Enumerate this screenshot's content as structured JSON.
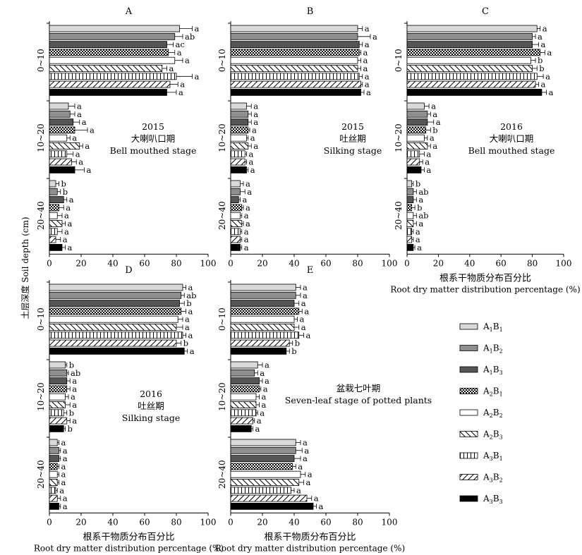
{
  "ylabel": "土层深度 Soil depth (cm)",
  "legend": [
    {
      "label": "A1B1",
      "main": "A",
      "sub1": "1",
      "mid": "B",
      "sub2": "1",
      "pattern": "light"
    },
    {
      "label": "A1B2",
      "main": "A",
      "sub1": "1",
      "mid": "B",
      "sub2": "2",
      "pattern": "gray"
    },
    {
      "label": "A1B3",
      "main": "A",
      "sub1": "1",
      "mid": "B",
      "sub2": "3",
      "pattern": "dark"
    },
    {
      "label": "A2B1",
      "main": "A",
      "sub1": "2",
      "mid": "B",
      "sub2": "1",
      "pattern": "checker"
    },
    {
      "label": "A2B2",
      "main": "A",
      "sub1": "2",
      "mid": "B",
      "sub2": "2",
      "pattern": "white"
    },
    {
      "label": "A2B3",
      "main": "A",
      "sub1": "2",
      "mid": "B",
      "sub2": "3",
      "pattern": "bslash"
    },
    {
      "label": "A3B1",
      "main": "A",
      "sub1": "3",
      "mid": "B",
      "sub2": "1",
      "pattern": "grid"
    },
    {
      "label": "A3B2",
      "main": "A",
      "sub1": "3",
      "mid": "B",
      "sub2": "2",
      "pattern": "fslash"
    },
    {
      "label": "A3B3",
      "main": "A",
      "sub1": "3",
      "mid": "B",
      "sub2": "3",
      "pattern": "black"
    }
  ],
  "chart_data": [
    {
      "type": "bar",
      "panel": "A",
      "annotation": [
        "2015",
        "大喇叭口期",
        "Bell mouthed stage"
      ],
      "xlabel_cn": "",
      "xlabel_en": "",
      "xlim": [
        0,
        100
      ],
      "xticks": [
        "0",
        "20",
        "40",
        "60",
        "80",
        "100"
      ],
      "depths": [
        "0~10",
        "10~20",
        "20~40"
      ],
      "values": [
        [
          82,
          79,
          74,
          75,
          79,
          71,
          80,
          76,
          74
        ],
        [
          12,
          13,
          15,
          16,
          11,
          19,
          11,
          14,
          16
        ],
        [
          4,
          5,
          9,
          6,
          5,
          8,
          5,
          4,
          8
        ]
      ],
      "errors": [
        [
          8,
          5,
          4,
          4,
          5,
          3,
          10,
          5,
          6
        ],
        [
          4,
          3,
          4,
          8,
          2,
          2,
          4,
          3,
          6
        ],
        [
          2,
          2,
          2,
          3,
          3,
          2,
          3,
          3,
          2
        ]
      ],
      "sig": [
        [
          "a",
          "ab",
          "ac",
          "a",
          "a",
          "a",
          "a",
          "a",
          "a"
        ],
        [
          "a",
          "a",
          "a",
          "a",
          "a",
          "a",
          "a",
          "a",
          "a"
        ],
        [
          "b",
          "b",
          "a",
          "a",
          "a",
          "a",
          "a",
          "a",
          "a"
        ]
      ]
    },
    {
      "type": "bar",
      "panel": "B",
      "annotation": [
        "2015",
        "吐丝期",
        "Silking stage"
      ],
      "xlabel_cn": "",
      "xlabel_en": "",
      "xlim": [
        0,
        100
      ],
      "xticks": [
        "0",
        "20",
        "40",
        "60",
        "80",
        "100"
      ],
      "depths": [
        "0~10",
        "10~20",
        "20~40"
      ],
      "values": [
        [
          80,
          80,
          81,
          81,
          80,
          80,
          81,
          82,
          82
        ],
        [
          10,
          11,
          11,
          11,
          10,
          11,
          9,
          9,
          10
        ],
        [
          6,
          6,
          5,
          7,
          6,
          7,
          6,
          6,
          6
        ]
      ],
      "errors": [
        [
          3,
          8,
          2,
          1,
          2,
          2,
          2,
          1,
          2
        ],
        [
          3,
          2,
          2,
          1,
          1,
          2,
          1,
          1,
          1
        ],
        [
          2,
          3,
          1,
          1,
          1,
          1,
          1,
          1,
          1
        ]
      ],
      "sig": [
        [
          "a",
          "a",
          "a",
          "a",
          "a",
          "a",
          "a",
          "a",
          "a"
        ],
        [
          "a",
          "a",
          "a",
          "a",
          "a",
          "a",
          "a",
          "a",
          "a"
        ],
        [
          "a",
          "a",
          "a",
          "a",
          "a",
          "a",
          "a",
          "a",
          "a"
        ]
      ]
    },
    {
      "type": "bar",
      "panel": "C",
      "annotation": [
        "2016",
        "大喇叭口期",
        "Bell mouthed stage"
      ],
      "xlabel_cn": "根系干物质分布百分比",
      "xlabel_en": "Root dry matter distribution percentage (%)",
      "xlim": [
        0,
        100
      ],
      "xticks": [
        "0",
        "20",
        "40",
        "60",
        "80",
        "100"
      ],
      "depths": [
        "0~10",
        "10~20",
        "20~40"
      ],
      "values": [
        [
          83,
          80,
          80,
          85,
          79,
          80,
          83,
          82,
          86
        ],
        [
          11,
          13,
          13,
          12,
          11,
          13,
          8,
          8,
          9
        ],
        [
          3,
          4,
          4,
          3,
          4,
          4,
          3,
          3,
          4
        ]
      ],
      "errors": [
        [
          2,
          2,
          4,
          3,
          3,
          3,
          4,
          2,
          3
        ],
        [
          3,
          2,
          4,
          3,
          2,
          2,
          3,
          2,
          2
        ],
        [
          1,
          2,
          2,
          2,
          2,
          2,
          1,
          1,
          1
        ]
      ],
      "sig": [
        [
          "a",
          "a",
          "a",
          "a",
          "b",
          "b",
          "a",
          "a",
          "a"
        ],
        [
          "a",
          "a",
          "a",
          "b",
          "a",
          "a",
          "a",
          "a",
          "a"
        ],
        [
          "b",
          "ab",
          "a",
          "b",
          "ab",
          "a",
          "a",
          "a",
          "a"
        ]
      ]
    },
    {
      "type": "bar",
      "panel": "D",
      "annotation": [
        "2016",
        "吐丝期",
        "Silking stage"
      ],
      "xlabel_cn": "根系干物质分布百分比",
      "xlabel_en": "Root dry matter distribution percentage (%)",
      "xlim": [
        0,
        100
      ],
      "xticks": [
        "0",
        "20",
        "40",
        "60",
        "80",
        "100"
      ],
      "depths": [
        "0~10",
        "10~20",
        "20~40"
      ],
      "values": [
        [
          84,
          83,
          82,
          83,
          81,
          80,
          84,
          80,
          85
        ],
        [
          10,
          11,
          11,
          11,
          10,
          10,
          9,
          11,
          9
        ],
        [
          5,
          6,
          6,
          5,
          5,
          5,
          4,
          5,
          6
        ]
      ],
      "errors": [
        [
          2,
          2,
          3,
          3,
          3,
          4,
          2,
          3,
          2
        ],
        [
          1,
          1,
          2,
          2,
          2,
          3,
          2,
          2,
          1
        ],
        [
          1,
          1,
          1,
          1,
          1,
          1,
          1,
          2,
          1
        ]
      ],
      "sig": [
        [
          "a",
          "ab",
          "b",
          "a",
          "a",
          "a",
          "a",
          "b",
          "a"
        ],
        [
          "b",
          "ab",
          "a",
          "a",
          "a",
          "a",
          "b",
          "a",
          "b"
        ],
        [
          "a",
          "a",
          "a",
          "a",
          "a",
          "a",
          "a",
          "a",
          "a"
        ]
      ]
    },
    {
      "type": "bar",
      "panel": "E",
      "annotation": [
        "盆栽七叶期",
        "Seven-leaf stage of potted plants"
      ],
      "xlabel_cn": "根系干物质分布百分比",
      "xlabel_en": "Root dry matter distribution percentage (%)",
      "xlim": [
        0,
        100
      ],
      "xticks": [
        "0",
        "20",
        "40",
        "60",
        "80",
        "100"
      ],
      "depths": [
        "0~10",
        "10~20",
        "20~40"
      ],
      "values": [
        [
          41,
          41,
          40,
          43,
          40,
          40,
          43,
          37,
          35
        ],
        [
          17,
          15,
          18,
          18,
          16,
          16,
          16,
          14,
          13
        ],
        [
          41,
          41,
          40,
          39,
          44,
          43,
          38,
          48,
          52
        ]
      ],
      "errors": [
        [
          3,
          3,
          3,
          2,
          2,
          3,
          3,
          2,
          2
        ],
        [
          3,
          2,
          2,
          1,
          2,
          2,
          1,
          1,
          1
        ],
        [
          3,
          4,
          4,
          2,
          3,
          3,
          2,
          3,
          2
        ]
      ],
      "sig": [
        [
          "a",
          "a",
          "a",
          "a",
          "a",
          "a",
          "a",
          "b",
          "b"
        ],
        [
          "a",
          "a",
          "a",
          "a",
          "a",
          "a",
          "a",
          "a",
          "a"
        ],
        [
          "a",
          "a",
          "a",
          "a",
          "a",
          "a",
          "a",
          "a",
          "a"
        ]
      ]
    }
  ]
}
